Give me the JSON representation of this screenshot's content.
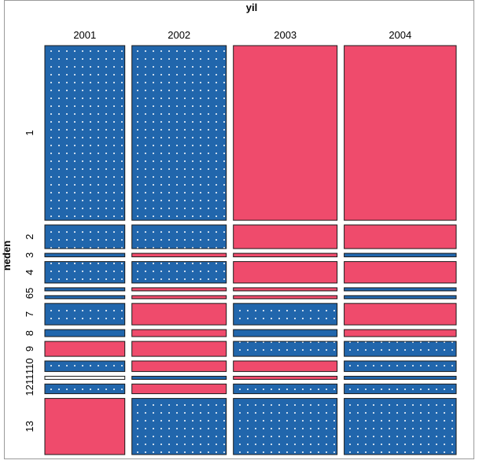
{
  "chart_data": {
    "type": "mosaic",
    "title": "",
    "xlabel": "yil",
    "ylabel": "neden",
    "columns": [
      "2001",
      "2002",
      "2003",
      "2004"
    ],
    "rows": [
      "1",
      "2",
      "3",
      "4",
      "5",
      "6",
      "7",
      "8",
      "9",
      "10",
      "11",
      "12",
      "13"
    ],
    "column_proportions": [
      0.205,
      0.242,
      0.266,
      0.287
    ],
    "row_proportions": [
      0.398,
      0.054,
      0.008,
      0.049,
      0.006,
      0.006,
      0.049,
      0.016,
      0.034,
      0.024,
      0.006,
      0.022,
      0.128
    ],
    "residual_sign": [
      [
        "positive",
        "positive",
        "negative",
        "negative"
      ],
      [
        "positive",
        "positive",
        "negative",
        "negative"
      ],
      [
        "positive",
        "negative",
        "negative",
        "positive"
      ],
      [
        "positive",
        "positive",
        "negative",
        "negative"
      ],
      [
        "positive",
        "negative",
        "negative",
        "positive"
      ],
      [
        "positive",
        "negative",
        "negative",
        "positive"
      ],
      [
        "positive",
        "negative",
        "positive",
        "negative"
      ],
      [
        "positive",
        "negative",
        "positive",
        "negative"
      ],
      [
        "negative",
        "negative",
        "positive",
        "positive"
      ],
      [
        "positive",
        "negative",
        "negative",
        "positive"
      ],
      [
        "none",
        "positive",
        "negative",
        "positive"
      ],
      [
        "positive",
        "negative",
        "positive",
        "positive"
      ],
      [
        "negative",
        "positive",
        "positive",
        "positive"
      ]
    ],
    "cell_fill": [
      [
        "dotted",
        "dotted",
        "solid",
        "solid"
      ],
      [
        "dotted",
        "dotted",
        "solid",
        "solid"
      ],
      [
        "solid",
        "solid",
        "solid",
        "solid"
      ],
      [
        "dotted",
        "dotted",
        "solid",
        "solid"
      ],
      [
        "solid",
        "solid",
        "solid",
        "solid"
      ],
      [
        "solid",
        "solid",
        "solid",
        "solid"
      ],
      [
        "dotted",
        "solid",
        "dotted",
        "solid"
      ],
      [
        "solid",
        "solid",
        "solid",
        "solid"
      ],
      [
        "solid",
        "solid",
        "dotted",
        "dotted"
      ],
      [
        "dotted",
        "solid",
        "solid",
        "dotted"
      ],
      [
        "solid",
        "solid",
        "solid",
        "solid"
      ],
      [
        "dotted",
        "solid",
        "dotted",
        "dotted"
      ],
      [
        "solid",
        "dotted",
        "dotted",
        "dotted"
      ]
    ],
    "row_label_style": {
      "5": "merged",
      "6": "merged",
      "10": "merged",
      "11": "merged",
      "12": "merged"
    },
    "row_axis_labels": [
      {
        "text": "1",
        "rows": [
          "1"
        ]
      },
      {
        "text": "2",
        "rows": [
          "2"
        ]
      },
      {
        "text": "3",
        "rows": [
          "3"
        ]
      },
      {
        "text": "4",
        "rows": [
          "4"
        ]
      },
      {
        "text": "65",
        "rows": [
          "5",
          "6"
        ]
      },
      {
        "text": "7",
        "rows": [
          "7"
        ]
      },
      {
        "text": "8",
        "rows": [
          "8"
        ]
      },
      {
        "text": "9",
        "rows": [
          "9"
        ]
      },
      {
        "text": "110",
        "rows": [
          "10"
        ]
      },
      {
        "text": "1211",
        "rows": [
          "11",
          "12"
        ]
      },
      {
        "text": "13",
        "rows": [
          "13"
        ]
      }
    ],
    "colors": {
      "positive": "#2166ac",
      "negative": "#ef4b6c",
      "none": "#ffffff",
      "border": "#1a1a1a",
      "dot": "#ffffff"
    },
    "legend": "none",
    "grid": false
  }
}
